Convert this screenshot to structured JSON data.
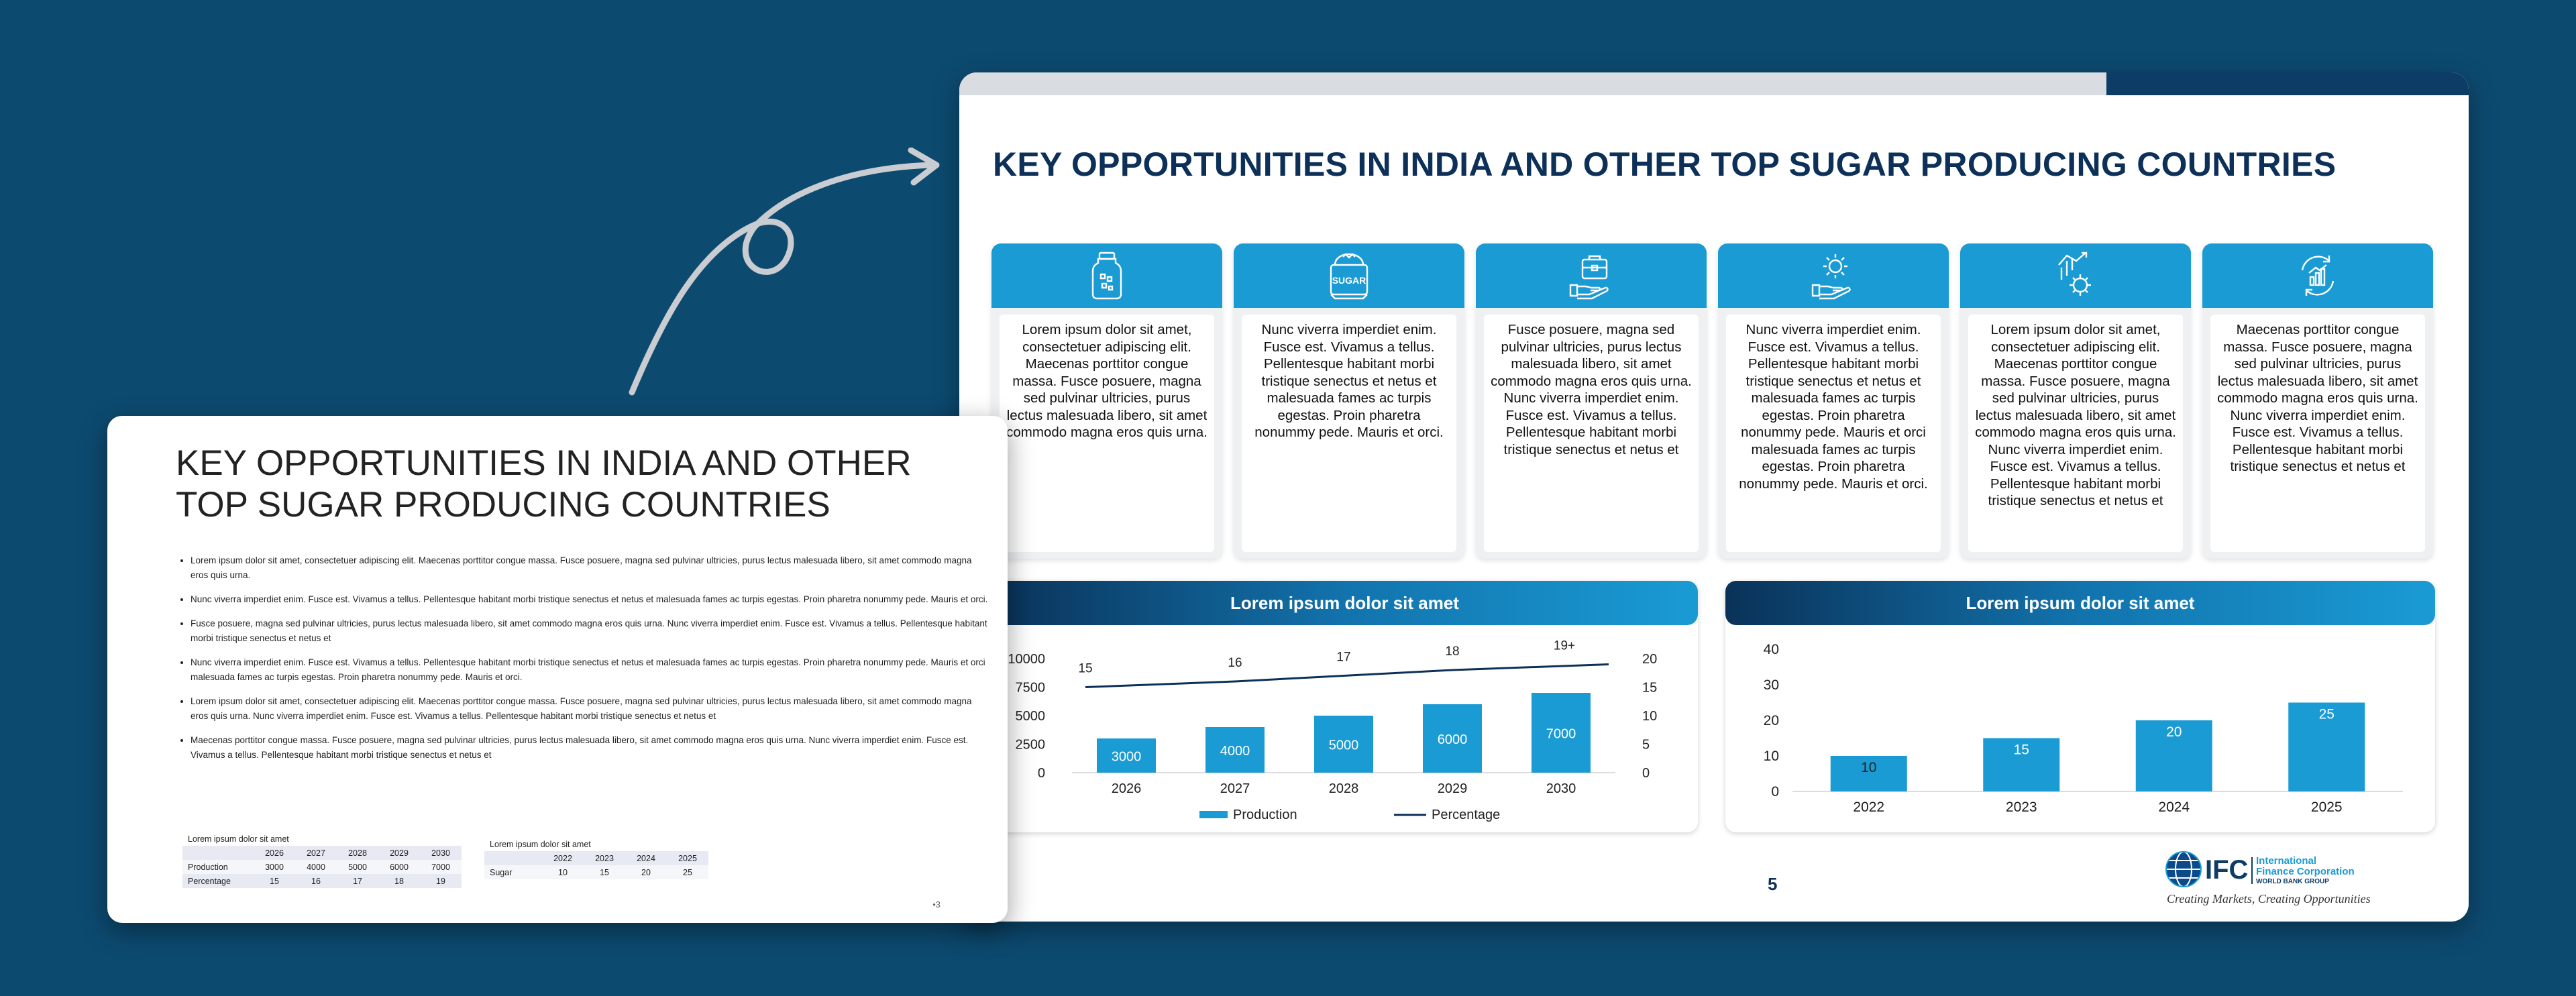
{
  "main_slide": {
    "title": "KEY OPPORTUNITIES IN INDIA AND OTHER TOP SUGAR PRODUCING COUNTRIES",
    "cards": [
      {
        "icon": "jar-icon",
        "text": "Lorem ipsum dolor sit amet, consectetuer adipiscing elit. Maecenas porttitor congue massa. Fusce posuere, magna sed pulvinar ultricies, purus lectus malesuada libero, sit amet commodo magna eros quis urna."
      },
      {
        "icon": "sugar-bag-icon",
        "icon_label": "SUGAR",
        "text": "Nunc viverra imperdiet enim. Fusce est. Vivamus a tellus. Pellentesque habitant morbi tristique senectus et netus et malesuada fames ac turpis egestas. Proin pharetra nonummy pede. Mauris et orci."
      },
      {
        "icon": "briefcase-hand-icon",
        "text": "Fusce posuere, magna sed pulvinar ultricies, purus lectus malesuada libero, sit amet commodo magna eros quis urna. Nunc viverra imperdiet enim. Fusce est. Vivamus a tellus. Pellentesque habitant morbi tristique senectus et netus et"
      },
      {
        "icon": "gear-hand-icon",
        "text": "Nunc viverra imperdiet enim. Fusce est. Vivamus a tellus. Pellentesque habitant morbi tristique senectus et netus et malesuada fames ac turpis egestas. Proin pharetra nonummy pede. Mauris et orci malesuada fames ac turpis egestas. Proin pharetra nonummy pede. Mauris et orci."
      },
      {
        "icon": "growth-gear-icon",
        "text": "Lorem ipsum dolor sit amet, consectetuer adipiscing elit. Maecenas porttitor congue massa. Fusce posuere, magna sed pulvinar ultricies, purus lectus malesuada libero, sit amet commodo magna eros quis urna. Nunc viverra imperdiet enim. Fusce est. Vivamus a tellus. Pellentesque habitant morbi tristique senectus et netus et"
      },
      {
        "icon": "cycle-chart-icon",
        "text": "Maecenas porttitor congue massa. Fusce posuere, magna sed pulvinar ultricies, purus lectus malesuada libero, sit amet commodo magna eros quis urna. Nunc viverra imperdiet enim. Fusce est. Vivamus a tellus. Pellentesque habitant morbi tristique senectus et netus et"
      }
    ],
    "panels": [
      {
        "title": "Lorem ipsum dolor sit amet"
      },
      {
        "title": "Lorem ipsum dolor sit amet"
      }
    ],
    "page_number": "5",
    "logo": {
      "abbr": "IFC",
      "line1": "International",
      "line2": "Finance Corporation",
      "line3": "WORLD BANK GROUP",
      "tagline": "Creating Markets, Creating Opportunities"
    }
  },
  "chart_data": [
    {
      "type": "bar",
      "title": "Lorem ipsum dolor sit amet",
      "categories": [
        "2026",
        "2027",
        "2028",
        "2029",
        "2030"
      ],
      "series": [
        {
          "name": "Production",
          "type": "bar",
          "axis": "left",
          "values": [
            3000,
            4000,
            5000,
            6000,
            7000
          ],
          "color": "#1a9bd4"
        },
        {
          "name": "Percentage",
          "type": "line",
          "axis": "right",
          "values": [
            15,
            16,
            17,
            18,
            19
          ],
          "color": "#0d3058"
        }
      ],
      "y_left": {
        "ticks": [
          "0",
          "2500",
          "5000",
          "7500",
          "10000"
        ],
        "range": [
          0,
          10000
        ]
      },
      "y_right": {
        "ticks": [
          "0",
          "5",
          "10",
          "15",
          "20"
        ],
        "range": [
          0,
          20
        ]
      },
      "line_labels": [
        "15",
        "16",
        "17",
        "18",
        "19+"
      ],
      "legend": "bottom"
    },
    {
      "type": "bar",
      "title": "Lorem ipsum dolor sit amet",
      "categories": [
        "2022",
        "2023",
        "2024",
        "2025"
      ],
      "series": [
        {
          "type": "bar",
          "values": [
            10,
            15,
            20,
            25
          ],
          "color": "#1a9bd4"
        }
      ],
      "y": {
        "ticks": [
          "0",
          "10",
          "20",
          "30",
          "40"
        ],
        "range": [
          0,
          40
        ]
      }
    }
  ],
  "preview_slide": {
    "title": "KEY OPPORTUNITIES IN INDIA AND OTHER TOP SUGAR PRODUCING COUNTRIES",
    "bullets": [
      "Lorem ipsum dolor sit amet, consectetuer adipiscing elit. Maecenas porttitor congue massa. Fusce posuere, magna sed pulvinar ultricies, purus lectus malesuada libero, sit amet commodo magna eros quis urna.",
      "Nunc viverra imperdiet enim. Fusce est. Vivamus a tellus. Pellentesque habitant morbi tristique senectus et netus et malesuada fames ac turpis egestas. Proin pharetra nonummy pede. Mauris et orci.",
      "Fusce posuere, magna sed pulvinar ultricies, purus lectus malesuada libero, sit amet commodo magna eros quis urna. Nunc viverra imperdiet enim. Fusce est. Vivamus a tellus. Pellentesque habitant morbi tristique senectus et netus et",
      "Nunc viverra imperdiet enim. Fusce est. Vivamus a tellus. Pellentesque habitant morbi tristique senectus et netus et malesuada fames ac turpis egestas. Proin pharetra nonummy pede. Mauris et orci malesuada fames ac turpis egestas. Proin pharetra nonummy pede. Mauris et orci.",
      "Lorem ipsum dolor sit amet, consectetuer adipiscing elit. Maecenas porttitor congue massa. Fusce posuere, magna sed pulvinar ultricies, purus lectus malesuada libero, sit amet commodo magna eros quis urna. Nunc viverra imperdiet enim. Fusce est. Vivamus a tellus. Pellentesque habitant morbi tristique senectus et netus et",
      "Maecenas porttitor congue massa. Fusce posuere, magna sed pulvinar ultricies, purus lectus malesuada libero, sit amet commodo magna eros quis urna. Nunc viverra imperdiet enim. Fusce est. Vivamus a tellus. Pellentesque habitant morbi tristique senectus et netus et"
    ],
    "table1": {
      "caption": "Lorem ipsum dolor sit amet",
      "headers": [
        "",
        "2026",
        "2027",
        "2028",
        "2029",
        "2030"
      ],
      "rows": [
        [
          "Production",
          "3000",
          "4000",
          "5000",
          "6000",
          "7000"
        ],
        [
          "Percentage",
          "15",
          "16",
          "17",
          "18",
          "19"
        ]
      ]
    },
    "table2": {
      "caption": "Lorem ipsum dolor sit amet",
      "headers": [
        "",
        "2022",
        "2023",
        "2024",
        "2025"
      ],
      "rows": [
        [
          "Sugar",
          "10",
          "15",
          "20",
          "25"
        ]
      ]
    },
    "page_number": "3"
  }
}
